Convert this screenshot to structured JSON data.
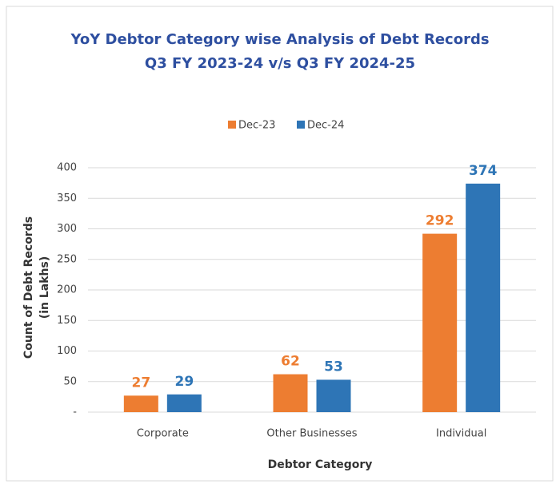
{
  "chart_data": {
    "type": "bar",
    "title": [
      "YoY Debtor Category wise Analysis of Debt Records",
      "Q3 FY 2023-24 v/s Q3 FY 2024-25"
    ],
    "xlabel": "Debtor Category",
    "ylabel": [
      "Count of Debt Records",
      "(in Lakhs)"
    ],
    "categories": [
      "Corporate",
      "Other Businesses",
      "Individual"
    ],
    "series": [
      {
        "name": "Dec-23",
        "color": "#ed7d31",
        "values": [
          27,
          62,
          292
        ]
      },
      {
        "name": "Dec-24",
        "color": "#2e75b6",
        "values": [
          29,
          53,
          374
        ]
      }
    ],
    "ylim": [
      0,
      400
    ],
    "yticks": [
      {
        "value": 0,
        "label": "-"
      },
      50,
      100,
      150,
      200,
      250,
      300,
      350,
      400
    ],
    "grid": true,
    "legend": "top"
  }
}
